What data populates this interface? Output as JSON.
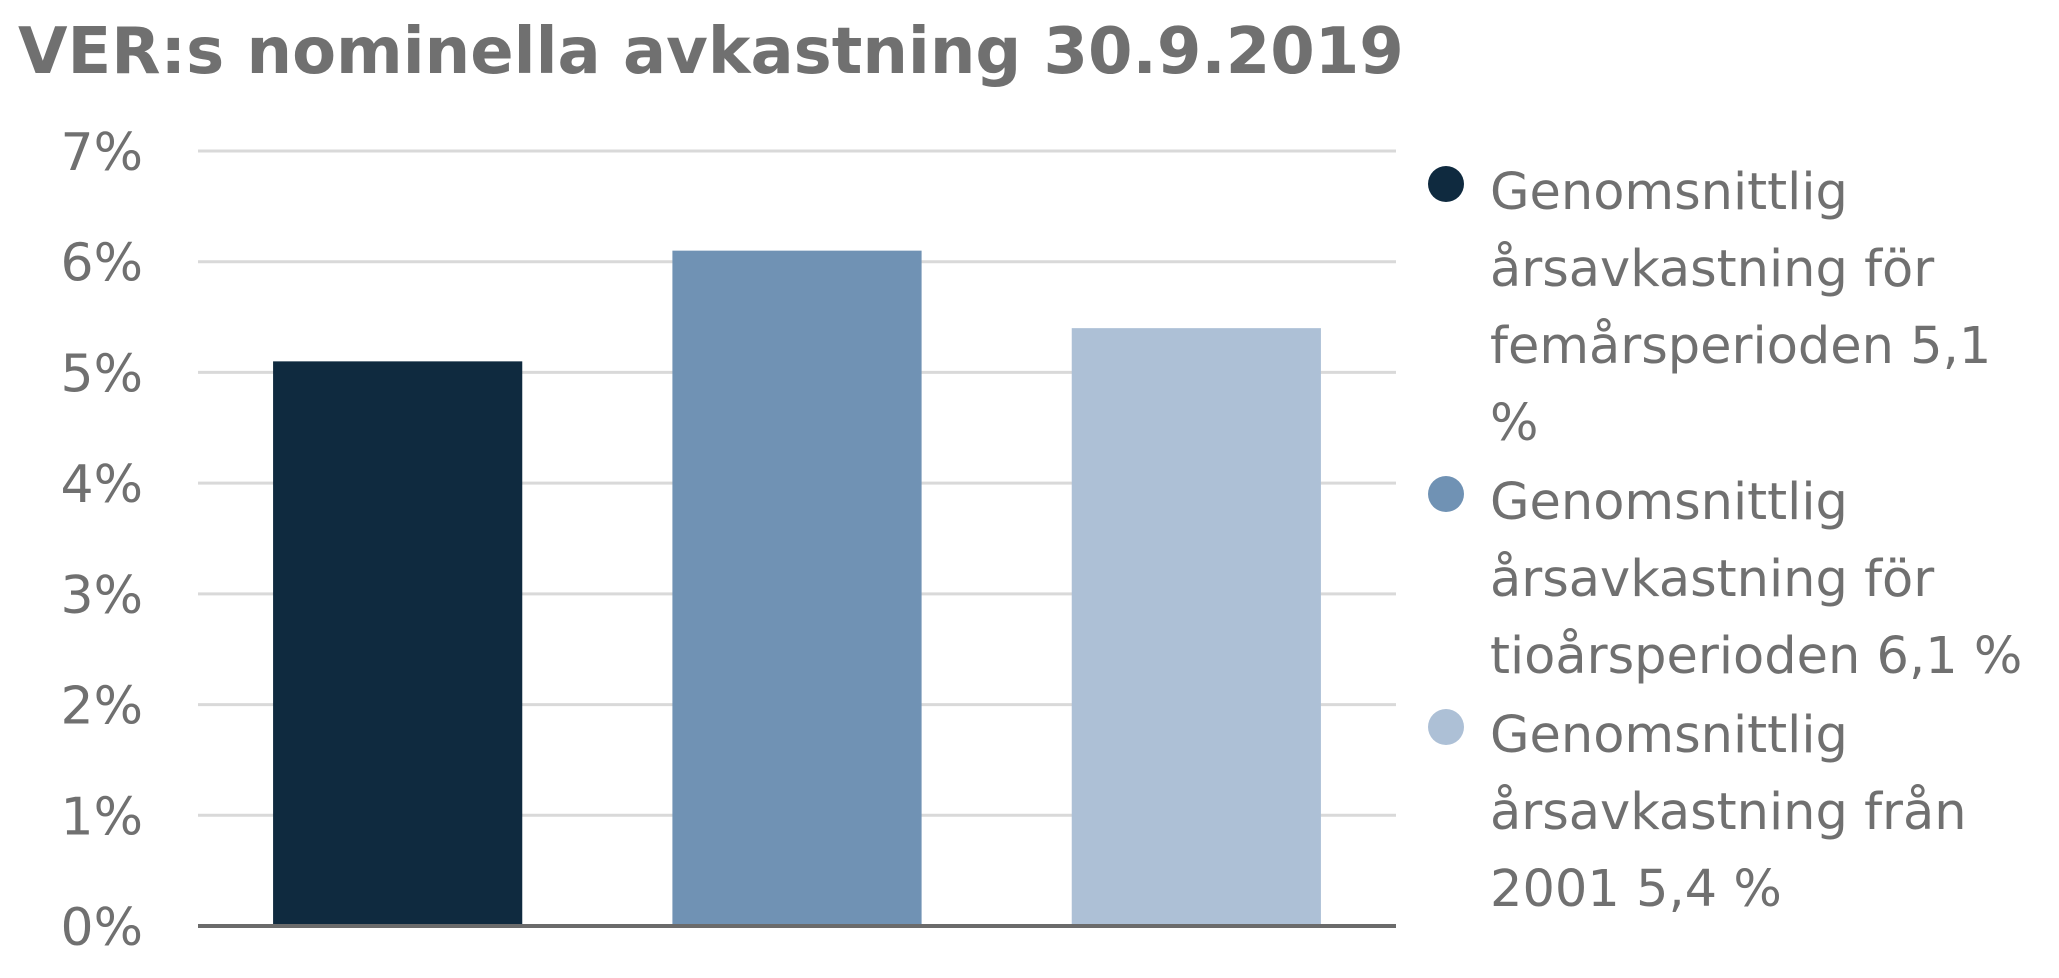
{
  "chart_data": {
    "type": "bar",
    "title": "VER:s nominella avkastning 30.9.2019",
    "xlabel": "",
    "ylabel": "",
    "ylim": [
      0,
      7
    ],
    "y_ticks": [
      0,
      1,
      2,
      3,
      4,
      5,
      6,
      7
    ],
    "y_tick_labels": [
      "0%",
      "1%",
      "2%",
      "3%",
      "4%",
      "5%",
      "6%",
      "7%"
    ],
    "grid": true,
    "legend_position": "right",
    "series": [
      {
        "name": "Genomsnittlig årsavkastning för femårsperioden 5,1 %",
        "value": 5.1,
        "color": "#0f2a3f"
      },
      {
        "name": "Genomsnittlig årsavkastning för tioårsperioden 6,1 %",
        "value": 6.1,
        "color": "#7092b4"
      },
      {
        "name": "Genomsnittlig årsavkastning från 2001 5,4 %",
        "value": 5.4,
        "color": "#adc0d6"
      }
    ],
    "gridline_color": "#d9d9d9",
    "axis_color": "#6b6b6b"
  }
}
